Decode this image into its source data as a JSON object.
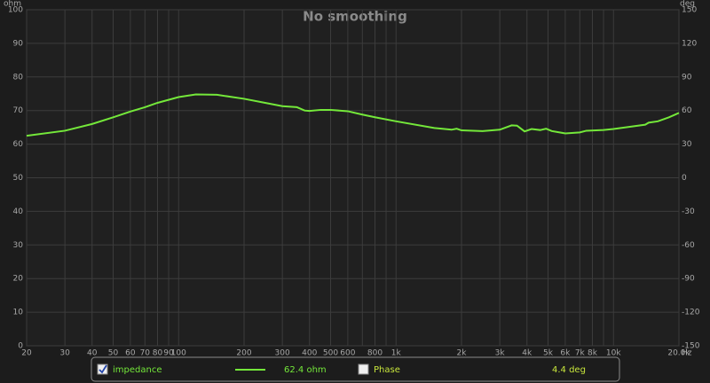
{
  "chart_data": {
    "type": "line",
    "title": "No smoothing",
    "y_unit": "ohm",
    "y2_unit": "deg",
    "x_unit": "Hz",
    "xscale": "log",
    "xlim": [
      20,
      20000
    ],
    "xticks": [
      20,
      30,
      40,
      50,
      60,
      70,
      80,
      90,
      100,
      200,
      300,
      400,
      500,
      600,
      800,
      {
        "value": 1000,
        "label": "1k"
      },
      {
        "value": 2000,
        "label": "2k"
      },
      {
        "value": 3000,
        "label": "3k"
      },
      {
        "value": 4000,
        "label": "4k"
      },
      {
        "value": 5000,
        "label": "5k"
      },
      {
        "value": 6000,
        "label": "6k"
      },
      {
        "value": 7000,
        "label": "7k"
      },
      {
        "value": 8000,
        "label": "8k"
      },
      {
        "value": 10000,
        "label": "10k"
      },
      {
        "value": 20000,
        "label": "20.0k"
      }
    ],
    "xminor": [
      700,
      900,
      9000
    ],
    "ylim": [
      0,
      100
    ],
    "yticks": [
      0,
      10,
      20,
      30,
      40,
      50,
      60,
      70,
      80,
      90,
      100
    ],
    "y2lim": [
      -150,
      150
    ],
    "y2ticks": [
      -150,
      -120,
      -90,
      -60,
      -30,
      0,
      30,
      60,
      90,
      120,
      150
    ],
    "grid": true,
    "series": [
      {
        "name": "impedance",
        "color": "#74e83a",
        "checked": true,
        "readout": "62.4 ohm",
        "x": [
          20,
          30,
          40,
          50,
          60,
          70,
          80,
          100,
          120,
          150,
          200,
          250,
          300,
          350,
          380,
          400,
          450,
          500,
          600,
          700,
          800,
          1000,
          1500,
          1800,
          1900,
          2000,
          2500,
          3000,
          3400,
          3600,
          3900,
          4200,
          4600,
          4900,
          5200,
          6000,
          7000,
          7500,
          9000,
          10000,
          12000,
          14000,
          14500,
          16000,
          18000,
          20000
        ],
        "values": [
          62.5,
          64,
          66,
          68,
          69.7,
          71,
          72.3,
          74,
          74.8,
          74.7,
          73.5,
          72.3,
          71.3,
          71,
          70,
          69.9,
          70.2,
          70.2,
          69.8,
          68.8,
          68,
          66.8,
          64.8,
          64.3,
          64.6,
          64.1,
          63.9,
          64.3,
          65.6,
          65.5,
          63.8,
          64.5,
          64.2,
          64.6,
          63.9,
          63.2,
          63.5,
          64,
          64.2,
          64.5,
          65.2,
          65.8,
          66.4,
          66.8,
          68,
          69.3
        ]
      },
      {
        "name": "Phase",
        "color": "#c8e63c",
        "axis": "y2",
        "checked": false,
        "readout": "4.4 deg",
        "x": [],
        "values": []
      }
    ]
  }
}
